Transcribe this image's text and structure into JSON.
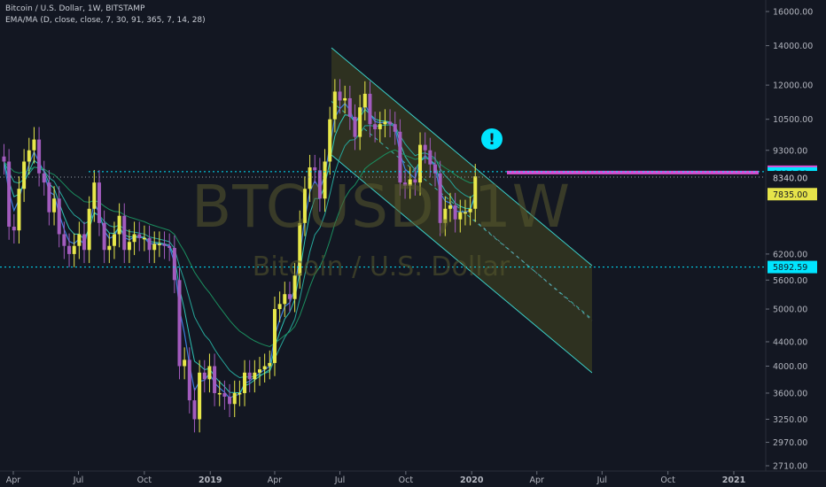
{
  "header": {
    "symbol_line": "Bitcoin / U.S. Dollar, 1W, BITSTAMP",
    "indicator_line": "EMA/MA (D, close, close, 7, 30, 91, 365, 7, 14, 28)"
  },
  "watermark": {
    "ticker": "BTCUSD, 1W",
    "name": "Bitcoin / U.S. Dollar"
  },
  "colors": {
    "background": "#131722",
    "up": "#e8e84a",
    "down": "#a25bbd",
    "cyan": "#00e5ff",
    "magenta": "#d64fd3",
    "olive": "#6e6a1b",
    "channel": "#3bd1c9",
    "ema7": "#3b7ddd",
    "ema30": "#26a69a",
    "ema91": "#1b8e5f"
  },
  "chart_data": {
    "type": "candlestick",
    "x_axis_labels": [
      {
        "label": "Apr",
        "date": "2018-04-01"
      },
      {
        "label": "Jul",
        "date": "2018-07-01"
      },
      {
        "label": "Oct",
        "date": "2018-10-01"
      },
      {
        "label": "2019",
        "date": "2019-01-01"
      },
      {
        "label": "Apr",
        "date": "2019-04-01"
      },
      {
        "label": "Jul",
        "date": "2019-07-01"
      },
      {
        "label": "Oct",
        "date": "2019-10-01"
      },
      {
        "label": "2020",
        "date": "2020-01-01"
      },
      {
        "label": "Apr",
        "date": "2020-04-01"
      },
      {
        "label": "Jul",
        "date": "2020-07-01"
      },
      {
        "label": "Oct",
        "date": "2020-10-01"
      },
      {
        "label": "2021",
        "date": "2021-01-01"
      }
    ],
    "y_axis_labels": [
      "16000.00",
      "14000.00",
      "12000.00",
      "10500.00",
      "9300.00",
      "6200.00",
      "5600.00",
      "5000.00",
      "4400.00",
      "4000.00",
      "3600.00",
      "3250.00",
      "2970.00",
      "2710.00"
    ],
    "y_scale": "log",
    "ylim": [
      2710,
      16500
    ],
    "price_labels": [
      {
        "text": "8555.00",
        "value": 8555,
        "color": "#d64fd3"
      },
      {
        "text": "8494.30",
        "value": 8494.3,
        "color": "#00e5ff"
      },
      {
        "text": "8375.00",
        "value": 8375,
        "color": "none"
      },
      {
        "text": "8340.00",
        "value": 8340,
        "color": "none"
      },
      {
        "text": "7835.00",
        "value": 7835,
        "color": "#e6e44a"
      },
      {
        "text": "5892.59",
        "value": 5892.59,
        "color": "#00e5ff"
      }
    ],
    "weekly_close": [
      {
        "date": "2018-03-19",
        "close": 8900
      },
      {
        "date": "2018-03-26",
        "close": 6900
      },
      {
        "date": "2018-04-02",
        "close": 6800
      },
      {
        "date": "2018-04-09",
        "close": 8000
      },
      {
        "date": "2018-04-16",
        "close": 8900
      },
      {
        "date": "2018-04-23",
        "close": 9300
      },
      {
        "date": "2018-04-30",
        "close": 9700
      },
      {
        "date": "2018-05-07",
        "close": 8500
      },
      {
        "date": "2018-05-14",
        "close": 8200
      },
      {
        "date": "2018-05-21",
        "close": 7300
      },
      {
        "date": "2018-05-28",
        "close": 7700
      },
      {
        "date": "2018-06-04",
        "close": 6700
      },
      {
        "date": "2018-06-11",
        "close": 6400
      },
      {
        "date": "2018-06-18",
        "close": 6200
      },
      {
        "date": "2018-06-25",
        "close": 6400
      },
      {
        "date": "2018-07-02",
        "close": 6700
      },
      {
        "date": "2018-07-09",
        "close": 6300
      },
      {
        "date": "2018-07-16",
        "close": 7400
      },
      {
        "date": "2018-07-23",
        "close": 8200
      },
      {
        "date": "2018-07-30",
        "close": 7000
      },
      {
        "date": "2018-08-06",
        "close": 6300
      },
      {
        "date": "2018-08-13",
        "close": 6400
      },
      {
        "date": "2018-08-20",
        "close": 6700
      },
      {
        "date": "2018-08-27",
        "close": 7200
      },
      {
        "date": "2018-09-03",
        "close": 6300
      },
      {
        "date": "2018-09-10",
        "close": 6500
      },
      {
        "date": "2018-09-17",
        "close": 6700
      },
      {
        "date": "2018-09-24",
        "close": 6600
      },
      {
        "date": "2018-10-01",
        "close": 6600
      },
      {
        "date": "2018-10-08",
        "close": 6300
      },
      {
        "date": "2018-10-15",
        "close": 6450
      },
      {
        "date": "2018-10-22",
        "close": 6450
      },
      {
        "date": "2018-10-29",
        "close": 6400
      },
      {
        "date": "2018-11-05",
        "close": 6350
      },
      {
        "date": "2018-11-12",
        "close": 5600
      },
      {
        "date": "2018-11-19",
        "close": 4000
      },
      {
        "date": "2018-11-26",
        "close": 4100
      },
      {
        "date": "2018-12-03",
        "close": 3500
      },
      {
        "date": "2018-12-10",
        "close": 3250
      },
      {
        "date": "2018-12-17",
        "close": 3900
      },
      {
        "date": "2018-12-24",
        "close": 3800
      },
      {
        "date": "2018-12-31",
        "close": 4000
      },
      {
        "date": "2019-01-07",
        "close": 3600
      },
      {
        "date": "2019-01-14",
        "close": 3600
      },
      {
        "date": "2019-01-21",
        "close": 3550
      },
      {
        "date": "2019-01-28",
        "close": 3450
      },
      {
        "date": "2019-02-04",
        "close": 3600
      },
      {
        "date": "2019-02-11",
        "close": 3600
      },
      {
        "date": "2019-02-18",
        "close": 3900
      },
      {
        "date": "2019-02-25",
        "close": 3800
      },
      {
        "date": "2019-03-04",
        "close": 3900
      },
      {
        "date": "2019-03-11",
        "close": 3950
      },
      {
        "date": "2019-03-18",
        "close": 4000
      },
      {
        "date": "2019-03-25",
        "close": 4050
      },
      {
        "date": "2019-04-01",
        "close": 5000
      },
      {
        "date": "2019-04-08",
        "close": 5100
      },
      {
        "date": "2019-04-15",
        "close": 5300
      },
      {
        "date": "2019-04-22",
        "close": 5200
      },
      {
        "date": "2019-04-29",
        "close": 5700
      },
      {
        "date": "2019-05-06",
        "close": 7000
      },
      {
        "date": "2019-05-13",
        "close": 8000
      },
      {
        "date": "2019-05-20",
        "close": 8700
      },
      {
        "date": "2019-05-27",
        "close": 8600
      },
      {
        "date": "2019-06-03",
        "close": 7700
      },
      {
        "date": "2019-06-10",
        "close": 8900
      },
      {
        "date": "2019-06-17",
        "close": 10500
      },
      {
        "date": "2019-06-24",
        "close": 11700
      },
      {
        "date": "2019-07-01",
        "close": 11300
      },
      {
        "date": "2019-07-08",
        "close": 11400
      },
      {
        "date": "2019-07-15",
        "close": 10600
      },
      {
        "date": "2019-07-22",
        "close": 9800
      },
      {
        "date": "2019-07-29",
        "close": 11000
      },
      {
        "date": "2019-08-05",
        "close": 11600
      },
      {
        "date": "2019-08-12",
        "close": 10300
      },
      {
        "date": "2019-08-19",
        "close": 10100
      },
      {
        "date": "2019-08-26",
        "close": 10300
      },
      {
        "date": "2019-09-02",
        "close": 10400
      },
      {
        "date": "2019-09-09",
        "close": 10300
      },
      {
        "date": "2019-09-16",
        "close": 10000
      },
      {
        "date": "2019-09-23",
        "close": 8200
      },
      {
        "date": "2019-09-30",
        "close": 8100
      },
      {
        "date": "2019-10-07",
        "close": 8300
      },
      {
        "date": "2019-10-14",
        "close": 8200
      },
      {
        "date": "2019-10-21",
        "close": 9500
      },
      {
        "date": "2019-10-28",
        "close": 9300
      },
      {
        "date": "2019-11-04",
        "close": 8800
      },
      {
        "date": "2019-11-11",
        "close": 8500
      },
      {
        "date": "2019-11-18",
        "close": 7000
      },
      {
        "date": "2019-11-25",
        "close": 7400
      },
      {
        "date": "2019-12-02",
        "close": 7500
      },
      {
        "date": "2019-12-09",
        "close": 7100
      },
      {
        "date": "2019-12-16",
        "close": 7300
      },
      {
        "date": "2019-12-23",
        "close": 7300
      },
      {
        "date": "2019-12-30",
        "close": 7400
      },
      {
        "date": "2020-01-06",
        "close": 8400
      }
    ]
  }
}
